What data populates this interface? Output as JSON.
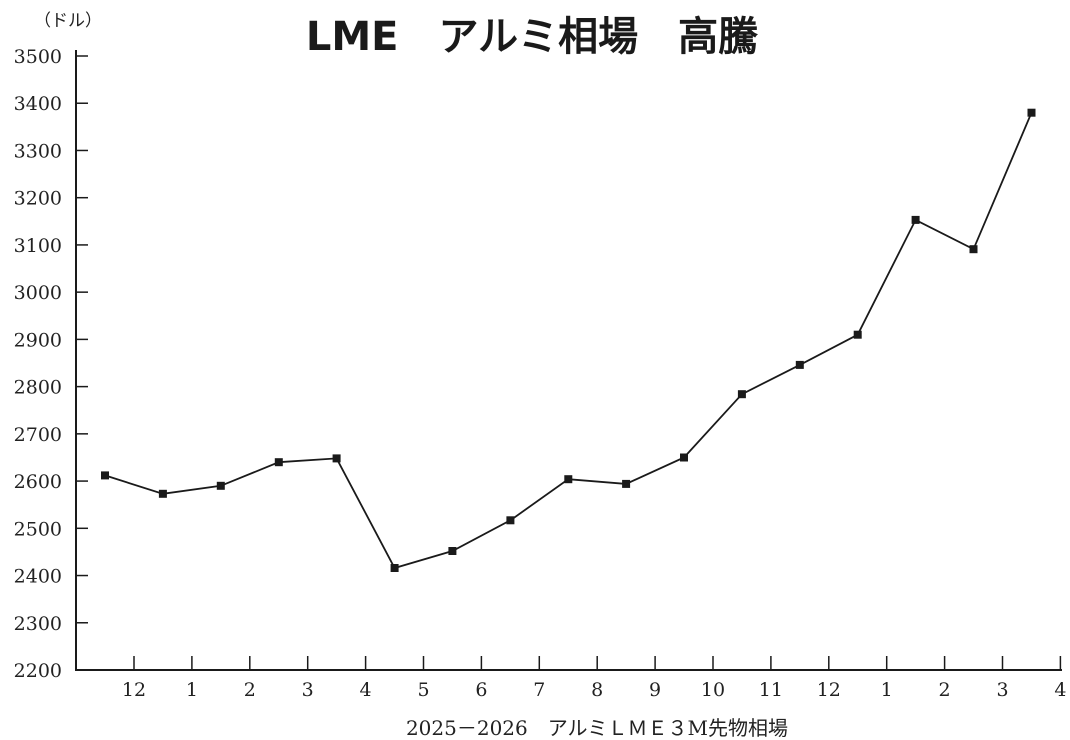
{
  "chart_data": {
    "type": "line",
    "title": "LME　アルミ相場　高騰",
    "unit": "（ドル）",
    "xlabel": "2025－2026　アルミＬＭＥ３M先物相場",
    "ylabel": "",
    "ylim": [
      2200,
      3500
    ],
    "y_ticks": [
      2200,
      2300,
      2400,
      2500,
      2600,
      2700,
      2800,
      2900,
      3000,
      3100,
      3200,
      3300,
      3400,
      3500
    ],
    "x_tick_labels": [
      "12",
      "1",
      "2",
      "3",
      "4",
      "5",
      "6",
      "7",
      "8",
      "9",
      "10",
      "11",
      "12",
      "1",
      "2",
      "3",
      "4"
    ],
    "grid": false,
    "legend": "none",
    "line_color": "#1a1a1a",
    "series": [
      {
        "values": [
          2612,
          2573,
          2590,
          2640,
          2648,
          2416,
          2452,
          2517,
          2604,
          2594,
          2650,
          2784,
          2846,
          2910,
          3153,
          3091,
          3380
        ]
      }
    ]
  }
}
